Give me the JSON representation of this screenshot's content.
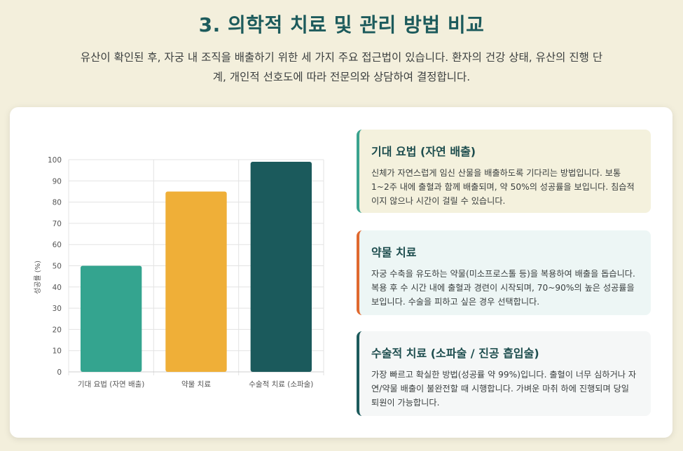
{
  "page": {
    "title": "3. 의학적 치료 및 관리 방법 비교",
    "intro": "유산이 확인된 후, 자궁 내 조직을 배출하기 위한 세 가지 주요 접근법이 있습니다. 환자의 건강 상태, 유산의 진행 단계, 개인적 선호도에 따라 전문의와 상담하여 결정합니다."
  },
  "chart_data": {
    "type": "bar",
    "categories": [
      "기대 요법 (자연 배출)",
      "약물 치료",
      "수술적 치료 (소파술)"
    ],
    "values": [
      50,
      85,
      99
    ],
    "colors": [
      "#34a48f",
      "#efaf38",
      "#1b5a5c"
    ],
    "title": "",
    "xlabel": "",
    "ylabel": "성공률 (%)",
    "ylim": [
      0,
      100
    ],
    "yticks": [
      0,
      10,
      20,
      30,
      40,
      50,
      60,
      70,
      80,
      90,
      100
    ],
    "grid": true,
    "legend": "none"
  },
  "cards": [
    {
      "title": "기대 요법 (자연 배출)",
      "text": "신체가 자연스럽게 임신 산물을 배출하도록 기다리는 방법입니다. 보통 1~2주 내에 출혈과 함께 배출되며, 약 50%의 성공률을 보입니다. 침습적이지 않으나 시간이 걸릴 수 있습니다.",
      "accent": "#3aa38f"
    },
    {
      "title": "약물 치료",
      "text": "자궁 수축을 유도하는 약물(미소프로스톨 등)을 복용하여 배출을 돕습니다. 복용 후 수 시간 내에 출혈과 경련이 시작되며, 70~90%의 높은 성공률을 보입니다. 수술을 피하고 싶은 경우 선택합니다.",
      "accent": "#e0692f"
    },
    {
      "title": "수술적 치료 (소파술 / 진공 흡입술)",
      "text": "가장 빠르고 확실한 방법(성공률 약 99%)입니다. 출혈이 너무 심하거나 자연/약물 배출이 불완전할 때 시행합니다. 가벼운 마취 하에 진행되며 당일 퇴원이 가능합니다.",
      "accent": "#1d5b5c"
    }
  ]
}
